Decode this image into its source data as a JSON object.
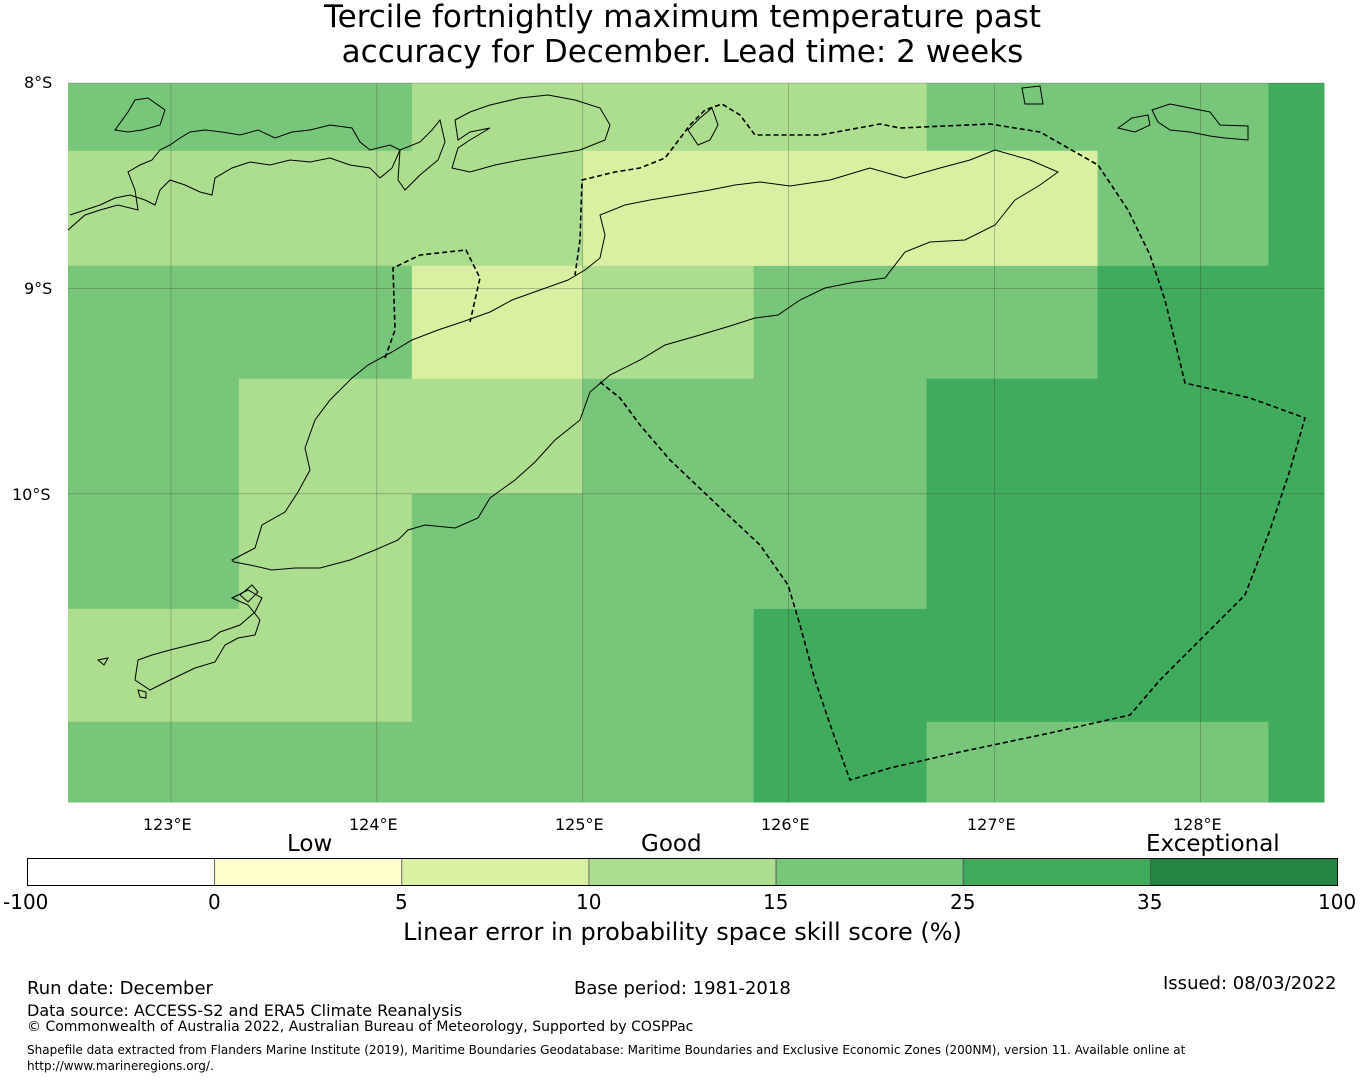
{
  "title_line1": "Tercile fortnightly maximum temperature past",
  "title_line2": "accuracy for December. Lead time: 2 weeks",
  "map": {
    "lat_labels": [
      "8°S",
      "9°S",
      "10°S"
    ],
    "lon_labels": [
      "123°E",
      "124°E",
      "125°E",
      "126°E",
      "127°E",
      "128°E"
    ],
    "lon_range": [
      122.5,
      128.6
    ],
    "lat_range": [
      -8.0,
      -11.5
    ],
    "grid_lons": [
      123,
      124,
      125,
      126,
      127,
      128
    ],
    "grid_lats": [
      -8,
      -9,
      -10
    ],
    "colors": {
      "c0_5": "#ffffcc",
      "c5_10": "#d9f0a3",
      "c10_15": "#addd8e",
      "c15_25": "#78c679",
      "c25_35": "#41ab5d",
      "c35_100": "#238443"
    }
  },
  "chart_data": {
    "type": "heatmap",
    "title": "Tercile fortnightly maximum temperature past accuracy for December. Lead time: 2 weeks",
    "xlabel": "",
    "ylabel": "",
    "x_edges": [
      122.5,
      123.33,
      124.17,
      125.0,
      125.83,
      126.67,
      127.5,
      128.33,
      128.6
    ],
    "y_edges": [
      -8.0,
      -8.33,
      -8.89,
      -9.44,
      -10.0,
      -10.56,
      -11.11,
      -11.5
    ],
    "cell_class": [
      [
        "c15_25",
        "c15_25",
        "c10_15",
        "c10_15",
        "c10_15",
        "c15_25",
        "c15_25",
        "c25_35"
      ],
      [
        "c10_15",
        "c10_15",
        "c10_15",
        "c5_10",
        "c5_10",
        "c5_10",
        "c15_25",
        "c25_35"
      ],
      [
        "c15_25",
        "c15_25",
        "c5_10",
        "c10_15",
        "c15_25",
        "c15_25",
        "c25_35",
        "c25_35"
      ],
      [
        "c15_25",
        "c10_15",
        "c10_15",
        "c15_25",
        "c15_25",
        "c25_35",
        "c25_35",
        "c25_35"
      ],
      [
        "c15_25",
        "c10_15",
        "c15_25",
        "c15_25",
        "c15_25",
        "c25_35",
        "c25_35",
        "c25_35"
      ],
      [
        "c10_15",
        "c10_15",
        "c15_25",
        "c15_25",
        "c25_35",
        "c25_35",
        "c25_35",
        "c25_35"
      ],
      [
        "c15_25",
        "c15_25",
        "c15_25",
        "c15_25",
        "c25_35",
        "c15_25",
        "c15_25",
        "c25_35"
      ]
    ]
  },
  "colorbar": {
    "category_labels": [
      "Low",
      "Good",
      "Exceptional"
    ],
    "tick_labels": [
      "-100",
      "0",
      "5",
      "10",
      "15",
      "25",
      "35",
      "100"
    ],
    "segment_colors": [
      "#ffffff",
      "#ffffcc",
      "#d9f0a3",
      "#addd8e",
      "#78c679",
      "#41ab5d",
      "#238443"
    ],
    "label": "Linear error in probability space skill score (%)"
  },
  "footer": {
    "run_date": "Run date: December",
    "base_period": "Base period: 1981-2018",
    "issued": "Issued: 08/03/2022",
    "data_source": "Data source: ACCESS-S2 and ERA5 Climate Reanalysis",
    "copyright": "© Commonwealth of Australia 2022, Australian Bureau of Meteorology, Supported by COSPPac",
    "shapefile_line1": "Shapefile data extracted from Flanders Marine Institute (2019), Maritime Boundaries Geodatabase: Maritime Boundaries and Exclusive Economic Zones (200NM), version 11. Available online at",
    "shapefile_line2": "http://www.marineregions.org/."
  }
}
